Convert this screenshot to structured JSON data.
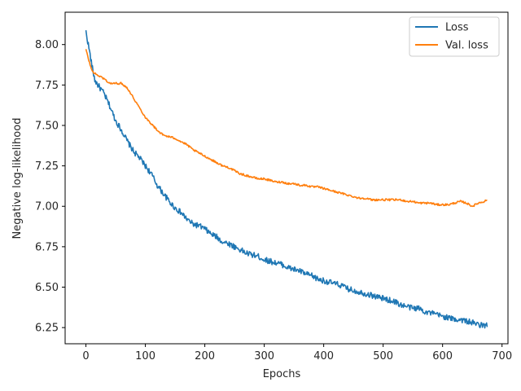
{
  "chart_data": {
    "type": "line",
    "xlabel": "Epochs",
    "ylabel": "Negative log-likelihood",
    "xlim": [
      -35,
      710
    ],
    "ylim": [
      6.15,
      8.2
    ],
    "x_ticks": [
      0,
      100,
      200,
      300,
      400,
      500,
      600,
      700
    ],
    "y_ticks": [
      6.25,
      6.5,
      6.75,
      7.0,
      7.25,
      7.5,
      7.75,
      8.0
    ],
    "y_tick_labels": [
      "6.25",
      "6.50",
      "6.75",
      "7.00",
      "7.25",
      "7.50",
      "7.75",
      "8.00"
    ],
    "grid": false,
    "legend_position": "top-right",
    "series": [
      {
        "name": "Loss",
        "color": "#1f77b4",
        "x": [
          0,
          5,
          10,
          15,
          20,
          30,
          40,
          50,
          60,
          70,
          80,
          90,
          100,
          110,
          120,
          130,
          140,
          150,
          160,
          170,
          180,
          190,
          200,
          210,
          220,
          230,
          240,
          250,
          260,
          270,
          280,
          290,
          300,
          310,
          320,
          330,
          340,
          350,
          360,
          370,
          380,
          390,
          400,
          410,
          420,
          430,
          440,
          450,
          460,
          470,
          480,
          490,
          500,
          510,
          520,
          530,
          540,
          550,
          560,
          570,
          580,
          590,
          600,
          610,
          620,
          630,
          640,
          650,
          660,
          670,
          675
        ],
        "values": [
          8.08,
          7.98,
          7.87,
          7.78,
          7.75,
          7.7,
          7.62,
          7.53,
          7.47,
          7.4,
          7.34,
          7.3,
          7.25,
          7.2,
          7.13,
          7.08,
          7.03,
          6.99,
          6.96,
          6.92,
          6.89,
          6.88,
          6.86,
          6.83,
          6.81,
          6.78,
          6.77,
          6.75,
          6.73,
          6.71,
          6.7,
          6.69,
          6.67,
          6.66,
          6.65,
          6.64,
          6.62,
          6.61,
          6.6,
          6.58,
          6.57,
          6.55,
          6.54,
          6.53,
          6.52,
          6.51,
          6.49,
          6.48,
          6.47,
          6.46,
          6.45,
          6.44,
          6.43,
          6.42,
          6.41,
          6.39,
          6.38,
          6.37,
          6.37,
          6.35,
          6.34,
          6.33,
          6.32,
          6.31,
          6.3,
          6.3,
          6.29,
          6.28,
          6.27,
          6.26,
          6.27
        ]
      },
      {
        "name": "Val. loss",
        "color": "#ff7f0e",
        "x": [
          0,
          5,
          10,
          15,
          20,
          30,
          40,
          50,
          60,
          70,
          80,
          90,
          100,
          110,
          120,
          130,
          140,
          150,
          160,
          170,
          180,
          190,
          200,
          210,
          220,
          230,
          240,
          250,
          260,
          270,
          280,
          290,
          300,
          310,
          320,
          330,
          340,
          350,
          360,
          370,
          380,
          390,
          400,
          410,
          420,
          430,
          440,
          450,
          460,
          470,
          480,
          490,
          500,
          510,
          520,
          530,
          540,
          550,
          560,
          570,
          580,
          590,
          600,
          610,
          620,
          630,
          640,
          650,
          660,
          670,
          675
        ],
        "values": [
          7.97,
          7.9,
          7.84,
          7.82,
          7.81,
          7.79,
          7.76,
          7.76,
          7.76,
          7.73,
          7.67,
          7.61,
          7.55,
          7.51,
          7.47,
          7.44,
          7.43,
          7.42,
          7.4,
          7.38,
          7.35,
          7.33,
          7.31,
          7.29,
          7.27,
          7.25,
          7.24,
          7.22,
          7.2,
          7.19,
          7.18,
          7.17,
          7.17,
          7.16,
          7.15,
          7.15,
          7.14,
          7.14,
          7.13,
          7.13,
          7.12,
          7.12,
          7.11,
          7.1,
          7.09,
          7.08,
          7.07,
          7.06,
          7.05,
          7.05,
          7.04,
          7.04,
          7.04,
          7.04,
          7.04,
          7.04,
          7.03,
          7.03,
          7.02,
          7.02,
          7.02,
          7.01,
          7.01,
          7.01,
          7.02,
          7.03,
          7.02,
          7.0,
          7.02,
          7.03,
          7.04
        ]
      }
    ]
  }
}
